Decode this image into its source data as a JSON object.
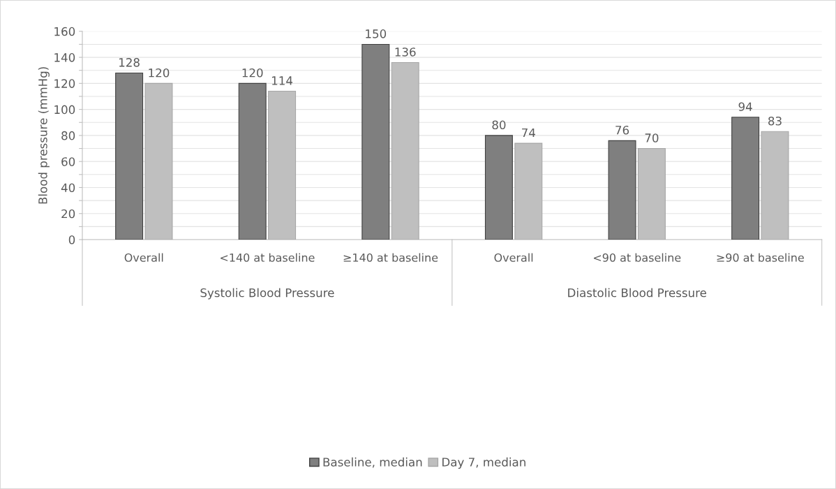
{
  "chart_data": {
    "type": "bar",
    "ylabel": "Blood pressure (mmHg)",
    "categories": [
      "Overall",
      "<140 at baseline",
      "≥140 at baseline",
      "Overall",
      "<90 at baseline",
      "≥90 at baseline"
    ],
    "series": [
      {
        "name": "Baseline, median",
        "color": "#7f7f7f",
        "values": [
          128,
          120,
          150,
          80,
          76,
          94
        ]
      },
      {
        "name": "Day 7, median",
        "color": "#bfbfbf",
        "values": [
          120,
          114,
          136,
          74,
          70,
          83
        ]
      }
    ],
    "annotations": [
      "Systolic Blood Pressure",
      "Diastolic Blood Pressure"
    ],
    "ylim": [
      0,
      160
    ],
    "yticks": [
      0,
      {
        "value": 10,
        "label": null
      },
      20,
      {
        "value": 30,
        "label": null
      },
      40,
      {
        "value": 50,
        "label": null
      },
      60,
      {
        "value": 70,
        "label": null
      },
      80,
      {
        "value": 90,
        "label": null
      },
      100,
      {
        "value": 110,
        "label": null
      },
      120,
      {
        "value": 130,
        "label": null
      },
      140,
      {
        "value": 150,
        "label": null
      },
      160
    ],
    "grid": "y",
    "data_labels": true,
    "legend": "bottom"
  }
}
